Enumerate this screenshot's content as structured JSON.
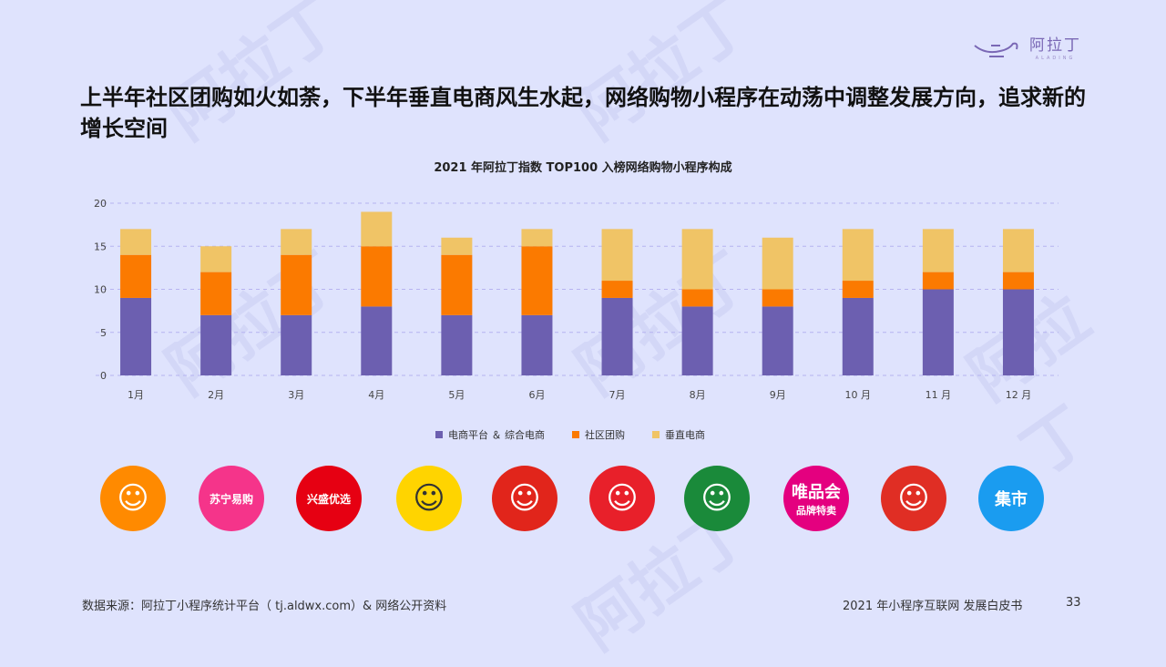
{
  "brand": {
    "name": "阿拉丁",
    "sub": "ALADING"
  },
  "headline": "上半年社区团购如火如荼，下半年垂直电商风生水起，网络购物小程序在动荡中调整发展方向，追求新的增长空间",
  "chart_data": {
    "type": "bar",
    "stacked": true,
    "title": "2021 年阿拉丁指数 TOP100 入榜网络购物小程序构成",
    "categories": [
      "1月",
      "2月",
      "3月",
      "4月",
      "5月",
      "6月",
      "7月",
      "8月",
      "9月",
      "10 月",
      "11 月",
      "12 月"
    ],
    "series": [
      {
        "name": "电商平台 ＆ 综合电商",
        "color": "#6c5fb0",
        "values": [
          9,
          7,
          7,
          8,
          7,
          7,
          9,
          8,
          8,
          9,
          10,
          10
        ]
      },
      {
        "name": "社区团购",
        "color": "#fb7a00",
        "values": [
          5,
          5,
          7,
          7,
          7,
          8,
          2,
          2,
          2,
          2,
          2,
          2
        ]
      },
      {
        "name": "垂直电商",
        "color": "#f0c466",
        "values": [
          3,
          3,
          3,
          4,
          2,
          2,
          6,
          7,
          6,
          6,
          5,
          5
        ]
      }
    ],
    "ylim": [
      0,
      20
    ],
    "yticks": [
      "0",
      "5",
      "10",
      "15",
      "20"
    ],
    "grid": true,
    "legend": "bottom"
  },
  "apps": [
    {
      "icon": "cow-mascot-icon",
      "color": "#ff8a00",
      "text": ""
    },
    {
      "icon": "suning-icon",
      "color": "#f5348a",
      "text": "苏宁易购"
    },
    {
      "icon": "xingsheng-icon",
      "color": "#e60012",
      "text": "兴盛优选"
    },
    {
      "icon": "smile-bag-icon",
      "color": "#ffd400",
      "text": ""
    },
    {
      "icon": "jd-dog-icon",
      "color": "#e1251b",
      "text": ""
    },
    {
      "icon": "carrot-icon",
      "color": "#e8202a",
      "text": ""
    },
    {
      "icon": "radish-icon",
      "color": "#1a8a3a",
      "text": ""
    },
    {
      "icon": "vip-icon",
      "color": "#e4007f",
      "text": "唯品会\n品牌特卖"
    },
    {
      "icon": "pinduoduo-icon",
      "color": "#e02e24",
      "text": ""
    },
    {
      "icon": "jishi-icon",
      "color": "#1a9cf0",
      "text": "集市"
    }
  ],
  "footer": {
    "source": "数据来源：阿拉丁小程序统计平台（ tj.aldwx.com）& 网络公开资料",
    "doc": "2021 年小程序互联网 发展白皮书",
    "page": "33"
  }
}
